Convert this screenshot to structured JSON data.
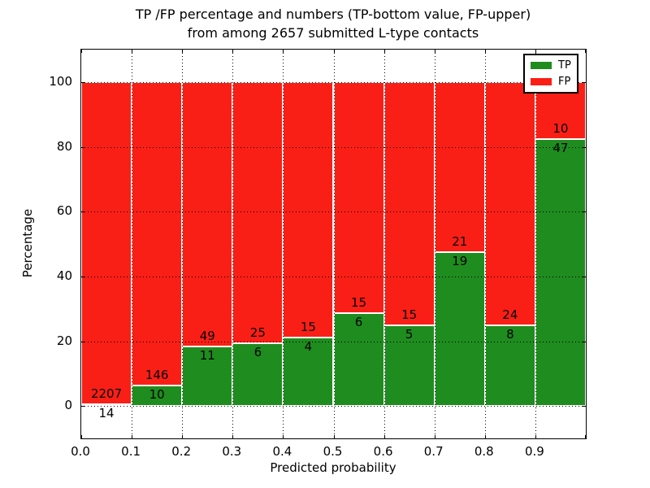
{
  "title": {
    "line1": "TP /FP percentage and numbers (TP-bottom value, FP-upper)",
    "line2": "from among 2657 submitted L-type contacts"
  },
  "axes": {
    "xlabel": "Predicted probability",
    "ylabel": "Percentage",
    "x_tick_labels": [
      "0.0",
      "0.1",
      "0.2",
      "0.3",
      "0.4",
      "0.5",
      "0.6",
      "0.7",
      "0.8",
      "0.9"
    ],
    "y_tick_labels": [
      "0",
      "20",
      "40",
      "60",
      "80",
      "100"
    ],
    "y_tick_values": [
      0,
      20,
      40,
      60,
      80,
      100
    ],
    "xlim": [
      0.0,
      1.0
    ],
    "ylim": [
      -10,
      110
    ],
    "grid": "dotted"
  },
  "legend": {
    "position": "upper-right",
    "entries": [
      {
        "label": "TP",
        "color": "#1f8c1f"
      },
      {
        "label": "FP",
        "color": "#fa1f16"
      }
    ]
  },
  "colors": {
    "tp": "#1f8c1f",
    "fp": "#fa1f16",
    "grid": "#000000",
    "bar_edge": "#ffffff",
    "background": "#ffffff",
    "axis": "#000000"
  },
  "chart_data": {
    "type": "bar",
    "stacked": true,
    "normalized_to": 100,
    "title": "TP /FP percentage and numbers (TP-bottom value, FP-upper) from among 2657 submitted L-type contacts",
    "xlabel": "Predicted probability",
    "ylabel": "Percentage",
    "total_contacts": 2657,
    "categories": [
      "0.0-0.1",
      "0.1-0.2",
      "0.2-0.3",
      "0.3-0.4",
      "0.4-0.5",
      "0.5-0.6",
      "0.6-0.7",
      "0.7-0.8",
      "0.8-0.9",
      "0.9-1.0"
    ],
    "series": [
      {
        "name": "TP",
        "position": "bottom",
        "color": "#1f8c1f",
        "counts": [
          14,
          10,
          11,
          6,
          4,
          6,
          5,
          19,
          8,
          47
        ]
      },
      {
        "name": "FP",
        "position": "top",
        "color": "#fa1f16",
        "counts": [
          2207,
          146,
          49,
          25,
          15,
          15,
          15,
          21,
          24,
          10
        ]
      }
    ],
    "tp_percent": [
      0.63,
      6.41,
      18.33,
      19.35,
      21.05,
      28.57,
      25.0,
      47.5,
      25.0,
      82.46
    ],
    "fp_percent": [
      99.37,
      93.59,
      81.67,
      80.65,
      78.95,
      71.43,
      75.0,
      52.5,
      75.0,
      17.54
    ],
    "bin_width": 0.1,
    "ylim": [
      -10,
      110
    ]
  }
}
